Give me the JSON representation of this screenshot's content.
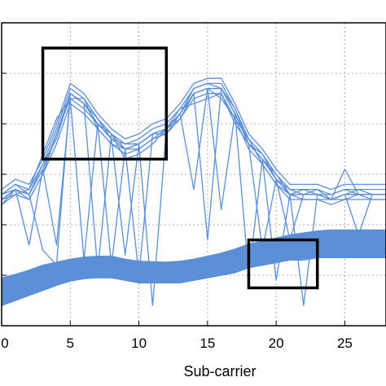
{
  "chart_data": {
    "type": "line",
    "xlabel": "Sub-carrier",
    "ylabel": "",
    "xlim": [
      0,
      28
    ],
    "ylim": [
      0,
      6
    ],
    "x_ticks": [
      0,
      5,
      10,
      15,
      20,
      25
    ],
    "grid": true,
    "legend": "none",
    "color": "#5b8fd8",
    "series": [
      {
        "x": [
          0,
          1,
          2,
          3,
          4,
          5,
          6,
          7,
          8,
          9,
          10,
          11,
          12,
          13,
          14,
          15,
          16,
          17,
          18,
          19,
          20,
          21,
          22,
          23,
          24,
          25,
          26,
          27,
          28
        ],
        "y": [
          2.5,
          2.7,
          2.6,
          3.1,
          3.8,
          4.6,
          4.4,
          4.0,
          3.7,
          3.5,
          3.6,
          3.8,
          3.9,
          4.2,
          4.6,
          4.7,
          4.7,
          4.2,
          3.6,
          3.3,
          2.9,
          2.6,
          2.6,
          2.6,
          2.5,
          2.6,
          2.6,
          2.6,
          2.6
        ]
      },
      {
        "x": [
          0,
          1,
          2,
          3,
          4,
          5,
          6,
          7,
          8,
          9,
          10,
          11,
          12,
          13,
          14,
          15,
          16,
          17,
          18,
          19,
          20,
          21,
          22,
          23,
          24,
          25,
          26,
          27,
          28
        ],
        "y": [
          2.6,
          2.8,
          2.7,
          3.2,
          3.9,
          4.7,
          4.5,
          4.1,
          3.8,
          3.6,
          3.7,
          3.9,
          4.0,
          4.3,
          4.7,
          4.8,
          4.8,
          4.3,
          3.7,
          3.4,
          3.0,
          2.7,
          2.7,
          2.7,
          2.6,
          2.7,
          2.7,
          2.7,
          2.7
        ]
      },
      {
        "x": [
          0,
          1,
          2,
          3,
          4,
          5,
          6,
          7,
          8,
          9,
          10,
          11,
          12,
          13,
          14,
          15,
          16,
          17,
          18,
          19,
          20,
          21,
          22,
          23,
          24,
          25,
          26,
          27,
          28
        ],
        "y": [
          2.4,
          2.6,
          2.5,
          3.0,
          3.6,
          4.4,
          4.2,
          3.9,
          3.6,
          3.4,
          3.5,
          3.7,
          3.8,
          4.1,
          4.5,
          4.6,
          4.6,
          4.1,
          3.5,
          3.2,
          2.8,
          2.5,
          2.5,
          2.5,
          2.4,
          2.5,
          2.5,
          2.5,
          2.5
        ]
      },
      {
        "x": [
          0,
          1,
          2,
          3,
          4,
          5,
          6,
          7,
          8,
          9,
          10,
          11,
          12,
          13,
          14,
          15,
          16,
          17,
          18,
          19,
          20,
          21,
          22,
          23,
          24,
          25,
          26,
          27,
          28
        ],
        "y": [
          2.7,
          2.9,
          2.8,
          3.3,
          4.0,
          4.8,
          4.6,
          4.2,
          3.9,
          3.7,
          3.8,
          4.0,
          4.1,
          4.4,
          4.8,
          4.9,
          4.9,
          4.4,
          3.8,
          3.5,
          3.1,
          2.8,
          2.8,
          2.8,
          2.7,
          2.8,
          2.8,
          2.8,
          2.8
        ]
      },
      {
        "x": [
          0,
          1,
          2,
          3,
          4,
          5,
          6,
          7,
          8,
          9,
          10,
          11,
          12,
          13,
          14,
          15,
          16,
          17,
          18,
          19,
          20,
          21,
          22,
          23,
          24,
          25,
          26,
          27,
          28
        ],
        "y": [
          2.5,
          2.6,
          2.7,
          3.4,
          4.1,
          4.5,
          4.3,
          4.0,
          3.8,
          3.3,
          3.4,
          3.6,
          3.9,
          4.3,
          4.4,
          4.5,
          4.6,
          4.0,
          3.6,
          3.3,
          3.0,
          2.6,
          2.7,
          2.6,
          2.6,
          2.7,
          2.6,
          2.6,
          2.6
        ]
      },
      {
        "x": [
          0,
          1,
          2,
          3,
          4,
          5,
          6,
          7,
          8,
          9,
          10,
          11,
          12,
          13,
          14,
          15,
          16,
          17,
          18,
          19,
          20,
          21,
          22,
          23,
          24,
          25,
          26,
          27,
          28
        ],
        "y": [
          2.6,
          2.7,
          2.6,
          3.2,
          3.7,
          4.6,
          4.4,
          4.1,
          3.7,
          3.6,
          3.6,
          3.8,
          3.8,
          4.2,
          4.7,
          4.8,
          4.7,
          4.3,
          3.6,
          3.4,
          2.9,
          2.7,
          2.6,
          2.7,
          2.5,
          2.6,
          2.7,
          2.6,
          2.6
        ]
      },
      {
        "x": [
          0,
          1,
          2,
          3,
          4,
          5,
          6,
          7,
          8,
          9,
          10,
          11,
          12,
          13,
          14,
          15,
          16,
          17,
          18,
          19,
          20,
          21,
          22,
          23,
          24,
          25,
          26,
          27,
          28
        ],
        "y": [
          2.4,
          2.7,
          2.5,
          3.0,
          3.8,
          4.5,
          4.5,
          3.9,
          3.6,
          3.5,
          3.5,
          3.7,
          3.9,
          4.1,
          4.6,
          4.7,
          4.5,
          4.1,
          3.7,
          3.2,
          2.8,
          2.6,
          2.5,
          2.5,
          2.5,
          2.5,
          2.6,
          2.5,
          2.5
        ]
      },
      {
        "x": [
          0,
          1,
          2,
          3,
          4,
          5,
          6,
          7,
          8,
          9,
          10,
          11,
          12,
          13,
          14,
          15,
          16,
          17,
          18,
          19,
          20,
          21,
          22,
          23,
          24,
          25,
          26,
          27,
          28
        ],
        "y": [
          2.6,
          2.8,
          2.6,
          1.5,
          1.2,
          4.6,
          4.4,
          1.1,
          3.8,
          3.5,
          1.0,
          3.8,
          3.9,
          4.2,
          4.6,
          1.7,
          4.7,
          4.2,
          3.6,
          1.5,
          2.9,
          2.6,
          0.4,
          2.6,
          2.5,
          3.1,
          2.6,
          2.6,
          2.6
        ]
      },
      {
        "x": [
          0,
          1,
          2,
          3,
          4,
          5,
          6,
          7,
          8,
          9,
          10,
          11,
          12,
          13,
          14,
          15,
          16,
          17,
          18,
          19,
          20,
          21,
          22,
          23,
          24,
          25,
          26,
          27,
          28
        ],
        "y": [
          2.5,
          2.7,
          2.6,
          3.1,
          1.6,
          4.5,
          1.3,
          4.0,
          3.7,
          1.4,
          3.6,
          0.4,
          3.9,
          4.2,
          2.7,
          4.7,
          4.7,
          4.2,
          1.0,
          3.3,
          2.9,
          1.7,
          2.6,
          2.6,
          2.5,
          2.6,
          1.8,
          2.6,
          2.6
        ]
      },
      {
        "x": [
          0,
          1,
          2,
          3,
          4,
          5,
          6,
          7,
          8,
          9,
          10,
          11,
          12,
          13,
          14,
          15,
          16,
          17,
          18,
          19,
          20,
          21,
          22,
          23,
          24,
          25,
          26,
          27,
          28
        ],
        "y": [
          2.5,
          2.7,
          1.6,
          3.1,
          3.8,
          4.6,
          4.4,
          4.0,
          1.2,
          3.5,
          3.6,
          3.8,
          3.9,
          4.2,
          4.6,
          4.7,
          2.3,
          4.2,
          3.6,
          3.3,
          0.9,
          2.6,
          2.6,
          2.6,
          2.5,
          2.6,
          2.6,
          2.6,
          2.6
        ]
      },
      {
        "x": [
          0,
          1,
          2,
          3,
          4,
          5,
          6,
          7,
          8,
          9,
          10,
          11,
          12,
          13,
          14,
          15,
          16,
          17,
          18,
          19,
          20,
          21,
          22,
          23,
          24,
          25,
          26,
          27,
          28
        ],
        "y": [
          0.6,
          0.7,
          0.8,
          0.9,
          1.0,
          1.05,
          1.1,
          1.1,
          1.1,
          1.05,
          1.0,
          1.0,
          1.0,
          1.0,
          1.05,
          1.1,
          1.15,
          1.2,
          1.3,
          1.35,
          1.4,
          1.45,
          1.5,
          1.5,
          1.55,
          1.55,
          1.55,
          1.55,
          1.55
        ]
      },
      {
        "x": [
          0,
          1,
          2,
          3,
          4,
          5,
          6,
          7,
          8,
          9,
          10,
          11,
          12,
          13,
          14,
          15,
          16,
          17,
          18,
          19,
          20,
          21,
          22,
          23,
          24,
          25,
          26,
          27,
          28
        ],
        "y": [
          0.9,
          1.0,
          1.1,
          1.2,
          1.25,
          1.3,
          1.35,
          1.35,
          1.35,
          1.3,
          1.25,
          1.25,
          1.25,
          1.25,
          1.3,
          1.35,
          1.4,
          1.5,
          1.6,
          1.65,
          1.7,
          1.75,
          1.8,
          1.85,
          1.85,
          1.85,
          1.85,
          1.85,
          1.85
        ]
      },
      {
        "x": [
          0,
          1,
          2,
          3,
          4,
          5,
          6,
          7,
          8,
          9,
          10,
          11,
          12,
          13,
          14,
          15,
          16,
          17,
          18,
          19,
          20,
          21,
          22,
          23,
          24,
          25,
          26,
          27,
          28
        ],
        "y": [
          0.4,
          0.5,
          0.6,
          0.7,
          0.8,
          0.9,
          0.95,
          0.95,
          0.95,
          0.9,
          0.85,
          0.85,
          0.85,
          0.85,
          0.9,
          0.95,
          1.0,
          1.05,
          1.15,
          1.2,
          1.25,
          1.3,
          1.3,
          1.35,
          1.35,
          1.35,
          1.35,
          1.35,
          1.35
        ]
      },
      {
        "x": [
          0,
          1,
          2,
          3,
          4,
          5,
          6,
          7,
          8,
          9,
          10,
          11,
          12,
          13,
          14,
          15,
          16,
          17,
          18,
          19,
          20,
          21,
          22,
          23,
          24,
          25,
          26,
          27,
          28
        ],
        "y": [
          0.7,
          0.85,
          0.95,
          1.05,
          1.1,
          1.15,
          1.2,
          1.25,
          1.2,
          1.15,
          1.1,
          1.1,
          1.1,
          1.15,
          1.2,
          1.25,
          1.3,
          1.35,
          1.45,
          1.5,
          1.55,
          1.6,
          1.65,
          1.7,
          1.7,
          1.7,
          1.7,
          1.7,
          1.7
        ]
      }
    ],
    "band": {
      "x": [
        0,
        1,
        2,
        3,
        4,
        5,
        6,
        7,
        8,
        9,
        10,
        11,
        12,
        13,
        14,
        15,
        16,
        17,
        18,
        19,
        20,
        21,
        22,
        23,
        24,
        25,
        26,
        27,
        28
      ],
      "lower": [
        0.4,
        0.5,
        0.6,
        0.7,
        0.8,
        0.88,
        0.93,
        0.95,
        0.95,
        0.9,
        0.85,
        0.85,
        0.85,
        0.86,
        0.9,
        0.95,
        1.0,
        1.05,
        1.15,
        1.2,
        1.25,
        1.3,
        1.32,
        1.35,
        1.35,
        1.35,
        1.35,
        1.35,
        1.35
      ],
      "upper": [
        0.95,
        1.02,
        1.1,
        1.2,
        1.26,
        1.32,
        1.36,
        1.38,
        1.38,
        1.32,
        1.28,
        1.27,
        1.26,
        1.28,
        1.32,
        1.38,
        1.44,
        1.52,
        1.62,
        1.68,
        1.74,
        1.8,
        1.84,
        1.88,
        1.9,
        1.9,
        1.9,
        1.9,
        1.9
      ]
    },
    "annotations": [
      {
        "type": "rect",
        "x0": 3,
        "x1": 12,
        "y0": 3.3,
        "y1": 5.5
      },
      {
        "type": "rect",
        "x0": 18,
        "x1": 23,
        "y0": 0.75,
        "y1": 1.7
      }
    ]
  }
}
